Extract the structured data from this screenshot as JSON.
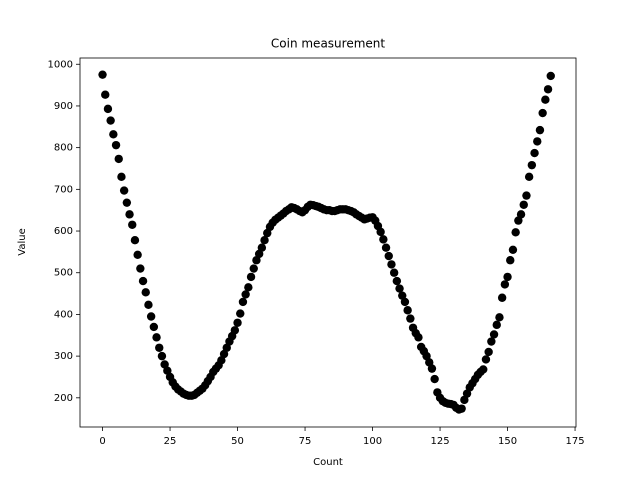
{
  "chart_data": {
    "type": "scatter",
    "title": "Coin measurement",
    "x_label": "Count",
    "y_label": "Value",
    "x": [
      0,
      1,
      2,
      3,
      4,
      5,
      6,
      7,
      8,
      9,
      10,
      11,
      12,
      13,
      14,
      15,
      16,
      17,
      18,
      19,
      20,
      21,
      22,
      23,
      24,
      25,
      26,
      27,
      28,
      29,
      30,
      31,
      32,
      33,
      34,
      35,
      36,
      37,
      38,
      39,
      40,
      41,
      42,
      43,
      44,
      45,
      46,
      47,
      48,
      49,
      50,
      51,
      52,
      53,
      54,
      55,
      56,
      57,
      58,
      59,
      60,
      61,
      62,
      63,
      64,
      65,
      66,
      67,
      68,
      69,
      70,
      71,
      72,
      73,
      74,
      75,
      76,
      77,
      78,
      79,
      80,
      81,
      82,
      83,
      84,
      85,
      86,
      87,
      88,
      89,
      90,
      91,
      92,
      93,
      94,
      95,
      96,
      97,
      98,
      99,
      100,
      101,
      102,
      103,
      104,
      105,
      106,
      107,
      108,
      109,
      110,
      111,
      112,
      113,
      114,
      115,
      116,
      117,
      118,
      119,
      120,
      121,
      122,
      123,
      124,
      125,
      126,
      127,
      128,
      129,
      130,
      131,
      132,
      133,
      134,
      135,
      136,
      137,
      138,
      139,
      140,
      141,
      142,
      143,
      144,
      145,
      146,
      147,
      148,
      149,
      150,
      151,
      152,
      153,
      154,
      155,
      156,
      157,
      158,
      159,
      160,
      161,
      162,
      163,
      164,
      165,
      166
    ],
    "values": [
      975,
      927,
      893,
      865,
      832,
      806,
      773,
      730,
      697,
      668,
      640,
      615,
      578,
      543,
      510,
      480,
      453,
      423,
      395,
      370,
      345,
      320,
      300,
      280,
      265,
      250,
      237,
      227,
      220,
      215,
      210,
      207,
      205,
      205,
      207,
      212,
      217,
      222,
      230,
      240,
      250,
      262,
      270,
      278,
      290,
      305,
      320,
      335,
      348,
      362,
      380,
      402,
      430,
      448,
      465,
      490,
      510,
      530,
      545,
      560,
      578,
      595,
      610,
      620,
      627,
      632,
      637,
      642,
      648,
      652,
      657,
      655,
      652,
      648,
      645,
      650,
      658,
      663,
      662,
      660,
      658,
      655,
      652,
      650,
      650,
      648,
      648,
      650,
      652,
      652,
      652,
      650,
      648,
      645,
      640,
      636,
      632,
      628,
      630,
      632,
      633,
      625,
      612,
      598,
      580,
      560,
      540,
      520,
      500,
      480,
      462,
      445,
      430,
      410,
      390,
      368,
      355,
      345,
      322,
      312,
      300,
      285,
      270,
      245,
      213,
      200,
      192,
      188,
      186,
      185,
      183,
      176,
      172,
      174,
      195,
      210,
      225,
      235,
      245,
      255,
      262,
      268,
      292,
      310,
      335,
      352,
      375,
      393,
      440,
      472,
      490,
      530,
      555,
      597,
      625,
      640,
      663,
      685,
      730,
      758,
      787,
      815,
      842,
      883,
      915,
      940,
      972
    ],
    "color": "#000000",
    "xlim": [
      -8.35,
      175.35
    ],
    "xticks": [
      0,
      25,
      50,
      75,
      100,
      125,
      150,
      175
    ],
    "ylim": [
      130,
      1015
    ],
    "yticks": [
      200,
      300,
      400,
      500,
      600,
      700,
      800,
      900,
      1000
    ]
  }
}
